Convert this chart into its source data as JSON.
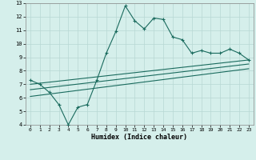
{
  "title": "",
  "xlabel": "Humidex (Indice chaleur)",
  "xlim": [
    -0.5,
    23.5
  ],
  "ylim": [
    4,
    13
  ],
  "xticks": [
    0,
    1,
    2,
    3,
    4,
    5,
    6,
    7,
    8,
    9,
    10,
    11,
    12,
    13,
    14,
    15,
    16,
    17,
    18,
    19,
    20,
    21,
    22,
    23
  ],
  "yticks": [
    4,
    5,
    6,
    7,
    8,
    9,
    10,
    11,
    12,
    13
  ],
  "background_color": "#d5efeb",
  "line_color": "#1a6b5e",
  "grid_color": "#b8d8d4",
  "main_x": [
    0,
    1,
    2,
    3,
    4,
    5,
    6,
    7,
    8,
    9,
    10,
    11,
    12,
    13,
    14,
    15,
    16,
    17,
    18,
    19,
    20,
    21,
    22,
    23
  ],
  "main_y": [
    7.3,
    7.0,
    6.4,
    5.5,
    4.0,
    5.3,
    5.5,
    7.3,
    9.3,
    10.9,
    12.8,
    11.7,
    11.1,
    11.9,
    11.8,
    10.5,
    10.3,
    9.3,
    9.5,
    9.3,
    9.3,
    9.6,
    9.3,
    8.8
  ],
  "trend1_x": [
    0,
    23
  ],
  "trend1_y": [
    7.0,
    8.8
  ],
  "trend2_x": [
    0,
    23
  ],
  "trend2_y": [
    6.6,
    8.5
  ],
  "trend3_x": [
    0,
    23
  ],
  "trend3_y": [
    6.1,
    8.15
  ],
  "lw": 0.8,
  "ms": 3.0
}
